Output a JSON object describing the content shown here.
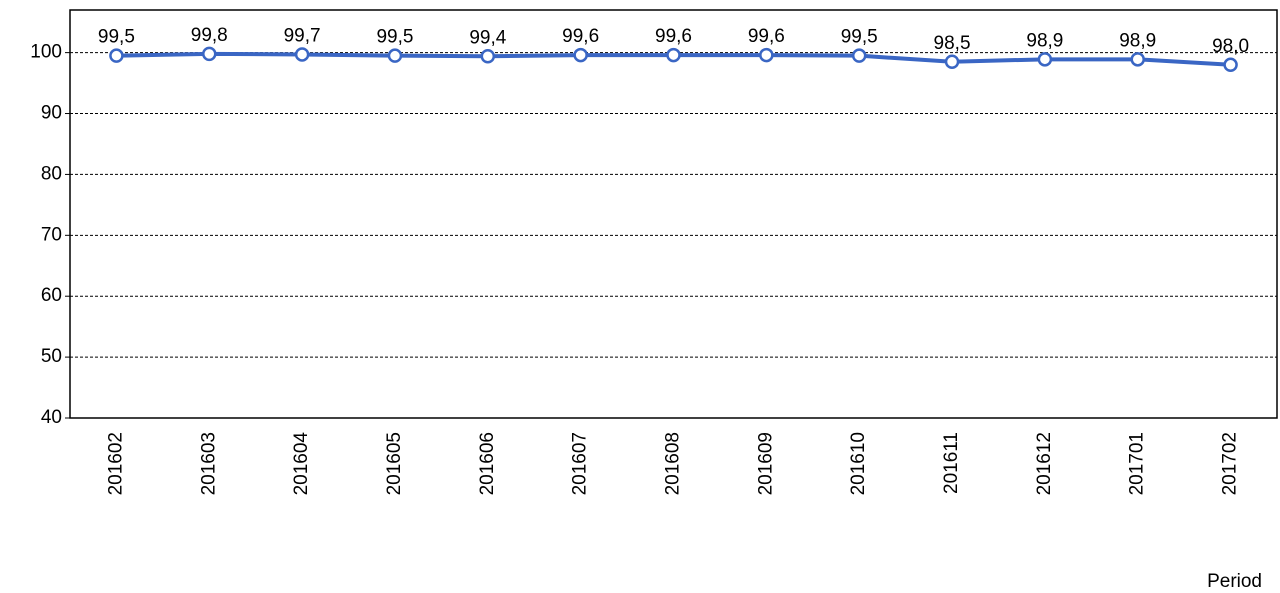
{
  "chart_data": {
    "type": "line",
    "categories": [
      "201602",
      "201603",
      "201604",
      "201605",
      "201606",
      "201607",
      "201608",
      "201609",
      "201610",
      "201611",
      "201612",
      "201701",
      "201702"
    ],
    "series": [
      {
        "color": "#3a66c4",
        "values": [
          99.5,
          99.8,
          99.7,
          99.5,
          99.4,
          99.6,
          99.6,
          99.6,
          99.5,
          98.5,
          98.9,
          98.9,
          98.0
        ],
        "value_labels": [
          "99,5",
          "99,8",
          "99,7",
          "99,5",
          "99,4",
          "99,6",
          "99,6",
          "99,6",
          "99,5",
          "98,5",
          "98,9",
          "98,9",
          "98,0"
        ]
      }
    ],
    "ylim": [
      40,
      107
    ],
    "yticks": [
      40,
      50,
      60,
      70,
      80,
      90,
      100
    ],
    "grid": true,
    "x_label": "Period"
  }
}
